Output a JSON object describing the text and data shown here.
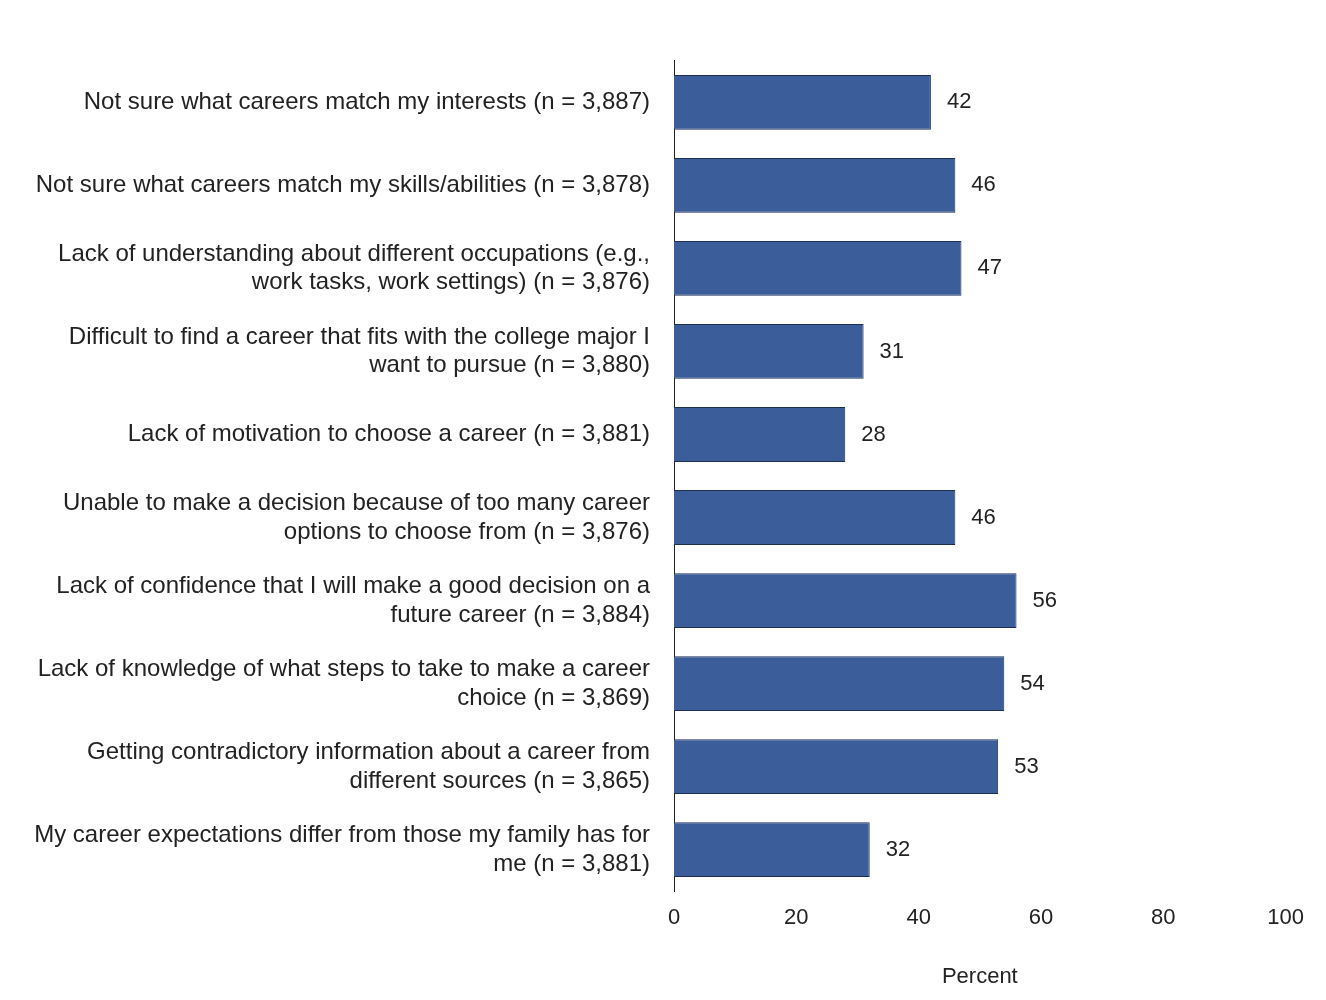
{
  "chart_data": {
    "type": "bar",
    "orientation": "horizontal",
    "categories": [
      "Not sure what careers match my interests (n = 3,887)",
      "Not sure what careers match my skills/abilities (n = 3,878)",
      "Lack of understanding about different occupations (e.g., work tasks, work settings) (n = 3,876)",
      "Difficult to find a career that fits with the college major I want to pursue (n = 3,880)",
      "Lack of motivation to choose a career (n = 3,881)",
      "Unable to make a decision because of too many career options to choose from (n = 3,876)",
      "Lack of confidence that I will make a good decision on a future career (n = 3,884)",
      "Lack of knowledge of what steps to take to make a career choice (n = 3,869)",
      "Getting contradictory information about a career from different sources (n = 3,865)",
      "My career expectations differ from those my family has for me (n = 3,881)"
    ],
    "values": [
      42,
      46,
      47,
      31,
      28,
      46,
      56,
      54,
      53,
      32
    ],
    "color": "#3b5e9b",
    "xlabel": "Percent",
    "xlim": [
      0,
      100
    ],
    "xticks": [
      0,
      20,
      40,
      60,
      80,
      100
    ],
    "grid": false,
    "legend": false,
    "data_labels": true
  }
}
